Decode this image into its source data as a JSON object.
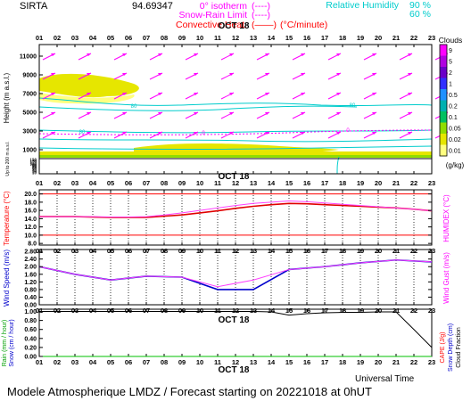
{
  "header": {
    "site": "SIRTA",
    "coords": "94.69347",
    "legend_left": [
      {
        "label": "0° isotherm",
        "sample": "(----)",
        "color": "#ff00ff"
      },
      {
        "label": "Snow-Rain Limit",
        "sample": "(----)",
        "color": "#ff00ff"
      },
      {
        "label": "Convective Heat.",
        "sample": "(——)",
        "unit": "(°C/minute)",
        "color": "#ff0000"
      }
    ],
    "legend_right": [
      {
        "label": "Relative Humidity",
        "value": "90 %",
        "color": "#00cccc"
      },
      {
        "label": "",
        "value": "60 %",
        "color": "#00cccc"
      }
    ]
  },
  "hours": [
    "01",
    "02",
    "03",
    "04",
    "05",
    "06",
    "07",
    "08",
    "09",
    "10",
    "11",
    "12",
    "13",
    "14",
    "15",
    "16",
    "17",
    "18",
    "19",
    "20",
    "21",
    "22",
    "23"
  ],
  "date_label": "OCT 18",
  "footer": {
    "xlabel": "Universal Time",
    "title": "Modele Atmospherique LMDZ / Forecast starting on 20221018 at 0hUT"
  },
  "colorbar": {
    "title": "Clouds",
    "unit": "(g/kg)",
    "levels": [
      "9",
      "5",
      "2",
      "1",
      "0.5",
      "0.2",
      "0.1",
      "0.05",
      "0.02",
      "0.01"
    ],
    "colors": [
      "#ff00ff",
      "#b000e0",
      "#6a00c8",
      "#3030ff",
      "#2090ff",
      "#00b0b0",
      "#00c060",
      "#90dd00",
      "#e6e600",
      "#ffff80"
    ]
  },
  "chart_data": [
    {
      "type": "heatmap",
      "panel": "vertical_profile",
      "ylabel": "Height (m a.s.l.)",
      "ylabel2": "Up to 200 m a.s.l.",
      "yticks_upper": [
        "11000",
        "9000",
        "7000",
        "5000",
        "3000",
        "1000"
      ],
      "yticks_lower": [
        "150",
        "140",
        "130",
        "120",
        "110",
        "100",
        "90",
        "80",
        "70",
        "60",
        "50",
        "40",
        "30",
        "20",
        "10"
      ],
      "rh_label": "80",
      "isotherm_label": "0",
      "wind_direction": "south-westerly"
    },
    {
      "type": "line",
      "panel": "temperature",
      "ylabel": "Temperature (°C)",
      "ylabel_right": "HUMIDEX (°C)",
      "yticks": [
        "20.0",
        "18.0",
        "16.0",
        "14.0",
        "12.0",
        "10.0",
        "8.0"
      ],
      "ylim": [
        7.6,
        21.0
      ],
      "x": [
        1,
        2,
        3,
        4,
        5,
        6,
        7,
        8,
        9,
        10,
        11,
        12,
        13,
        14,
        15,
        16,
        17,
        18,
        19,
        20,
        21,
        22,
        23
      ],
      "series": [
        {
          "color": "#e00000",
          "values": [
            14.5,
            14.5,
            14.5,
            14.4,
            14.3,
            14.3,
            14.3,
            14.6,
            14.9,
            15.4,
            15.9,
            16.5,
            17.0,
            17.4,
            17.7,
            17.6,
            17.4,
            17.2,
            17.0,
            16.8,
            16.6,
            16.3,
            15.9
          ]
        },
        {
          "color": "#ff40ff",
          "values": [
            14.5,
            14.5,
            14.5,
            14.5,
            14.4,
            14.4,
            14.5,
            14.9,
            15.4,
            16.0,
            16.6,
            17.2,
            17.7,
            18.0,
            18.3,
            18.1,
            17.8,
            17.5,
            17.2,
            16.9,
            16.6,
            16.3,
            15.9
          ]
        }
      ],
      "ref_lines": [
        20.0,
        10.0
      ]
    },
    {
      "type": "line",
      "panel": "wind",
      "ylabel": "Wind Speed (m/s)",
      "ylabel_right": "Wind Gust (m/s)",
      "yticks": [
        "2.80",
        "2.40",
        "2.00",
        "1.60",
        "1.20",
        "0.80",
        "0.40",
        "0.00"
      ],
      "ylim": [
        0,
        2.9
      ],
      "x": [
        1,
        3,
        5,
        7,
        9,
        11,
        13,
        15,
        17,
        19,
        21,
        23
      ],
      "series": [
        {
          "color": "#0000cc",
          "values": [
            2.0,
            1.6,
            1.3,
            1.5,
            1.45,
            0.8,
            0.8,
            1.85,
            2.0,
            2.2,
            2.35,
            2.25
          ]
        },
        {
          "color": "#ff40ff",
          "values": [
            2.0,
            1.6,
            1.3,
            1.5,
            1.45,
            0.95,
            1.3,
            1.85,
            2.0,
            2.2,
            2.35,
            2.25
          ]
        }
      ]
    },
    {
      "type": "line",
      "panel": "precipitation",
      "ylabel": "Rain (mm / hour)",
      "ylabel2": "Snow (cm / hour)",
      "ylabel_right": "CAPE (J/g)",
      "ylabel_right2": "Snow Depth (cm)",
      "ylabel_right3": "Cloud Fraction",
      "yticks": [
        "1.00",
        "0.80",
        "0.60",
        "0.40",
        "0.20",
        "0.00"
      ],
      "ylim": [
        0,
        1.05
      ],
      "x": [
        1,
        2,
        3,
        4,
        5,
        6,
        7,
        8,
        9,
        10,
        11,
        12,
        13,
        14,
        15,
        16,
        17,
        18,
        19,
        20,
        21,
        22,
        23
      ],
      "series": [
        {
          "color": "#000000",
          "name": "",
          "values": [
            1.0,
            1.0,
            1.0,
            1.0,
            1.0,
            1.0,
            1.0,
            1.0,
            1.0,
            1.0,
            1.0,
            1.0,
            1.0,
            0.99,
            0.92,
            0.95,
            0.97,
            0.98,
            0.98,
            0.99,
            0.99,
            0.6,
            0.2
          ]
        },
        {
          "color": "#00c000",
          "values": [
            0,
            0,
            0,
            0,
            0,
            0,
            0,
            0,
            0,
            0,
            0,
            0,
            0,
            0,
            0,
            0,
            0,
            0,
            0,
            0,
            0,
            0,
            0
          ]
        }
      ]
    }
  ]
}
